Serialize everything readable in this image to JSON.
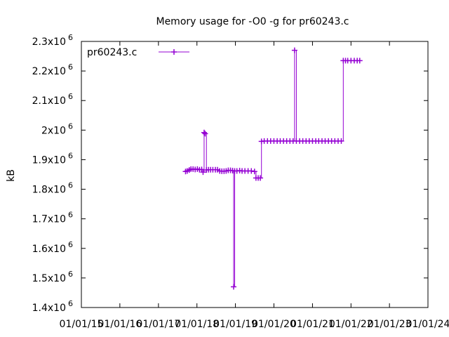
{
  "chart_data": {
    "type": "line",
    "title": "Memory usage for -O0 -g for pr60243.c",
    "xlabel": "",
    "ylabel": "kB",
    "ylim": [
      1400000,
      2300000
    ],
    "xlim": [
      "2015-01-01",
      "2024-01-01"
    ],
    "y_ticks": [
      {
        "value": 1400000,
        "base": "1.4x10",
        "exp": "6"
      },
      {
        "value": 1500000,
        "base": "1.5x10",
        "exp": "6"
      },
      {
        "value": 1600000,
        "base": "1.6x10",
        "exp": "6"
      },
      {
        "value": 1700000,
        "base": "1.7x10",
        "exp": "6"
      },
      {
        "value": 1800000,
        "base": "1.8x10",
        "exp": "6"
      },
      {
        "value": 1900000,
        "base": "1.9x10",
        "exp": "6"
      },
      {
        "value": 2000000,
        "base": "2x10",
        "exp": "6"
      },
      {
        "value": 2100000,
        "base": "2.1x10",
        "exp": "6"
      },
      {
        "value": 2200000,
        "base": "2.2x10",
        "exp": "6"
      },
      {
        "value": 2300000,
        "base": "2.3x10",
        "exp": "6"
      }
    ],
    "x_ticks": [
      {
        "value": "2015-01-01",
        "label": "01/01/15"
      },
      {
        "value": "2016-01-01",
        "label": "01/01/16"
      },
      {
        "value": "2017-01-01",
        "label": "01/01/17"
      },
      {
        "value": "2018-01-01",
        "label": "01/01/18"
      },
      {
        "value": "2019-01-01",
        "label": "01/01/19"
      },
      {
        "value": "2020-01-01",
        "label": "01/01/20"
      },
      {
        "value": "2021-01-01",
        "label": "01/01/21"
      },
      {
        "value": "2022-01-01",
        "label": "01/01/22"
      },
      {
        "value": "2023-01-01",
        "label": "01/01/23"
      },
      {
        "value": "2024-01-01",
        "label": "01/01/24"
      }
    ],
    "grid": false,
    "legend": {
      "position": "top-left",
      "entries": [
        "pr60243.c"
      ]
    },
    "series": [
      {
        "name": "pr60243.c",
        "color": "#9400d3",
        "marker": "plus",
        "points": [
          [
            "2017-09-15",
            1860000
          ],
          [
            "2017-10-01",
            1862000
          ],
          [
            "2017-10-20",
            1865000
          ],
          [
            "2017-11-05",
            1868000
          ],
          [
            "2017-11-25",
            1868000
          ],
          [
            "2017-12-15",
            1867000
          ],
          [
            "2018-01-05",
            1868000
          ],
          [
            "2018-01-25",
            1866000
          ],
          [
            "2018-02-15",
            1867000
          ],
          [
            "2018-02-28",
            1858000
          ],
          [
            "2018-03-10",
            1992000
          ],
          [
            "2018-03-20",
            1988000
          ],
          [
            "2018-04-01",
            1865000
          ],
          [
            "2018-04-20",
            1866000
          ],
          [
            "2018-05-10",
            1866000
          ],
          [
            "2018-06-01",
            1866000
          ],
          [
            "2018-06-25",
            1866000
          ],
          [
            "2018-07-15",
            1866000
          ],
          [
            "2018-08-05",
            1862000
          ],
          [
            "2018-08-25",
            1861000
          ],
          [
            "2018-09-15",
            1861000
          ],
          [
            "2018-10-05",
            1862000
          ],
          [
            "2018-10-25",
            1864000
          ],
          [
            "2018-11-15",
            1864000
          ],
          [
            "2018-12-05",
            1863000
          ],
          [
            "2018-12-15",
            1470000
          ],
          [
            "2018-12-25",
            1862000
          ],
          [
            "2019-01-15",
            1862000
          ],
          [
            "2019-02-10",
            1863000
          ],
          [
            "2019-03-05",
            1862000
          ],
          [
            "2019-04-01",
            1862000
          ],
          [
            "2019-05-01",
            1862000
          ],
          [
            "2019-06-01",
            1862000
          ],
          [
            "2019-07-01",
            1860000
          ],
          [
            "2019-07-15",
            1838000
          ],
          [
            "2019-08-05",
            1838000
          ],
          [
            "2019-08-25",
            1838000
          ],
          [
            "2019-09-05",
            1962000
          ],
          [
            "2019-10-01",
            1963000
          ],
          [
            "2019-11-01",
            1963000
          ],
          [
            "2019-12-01",
            1963000
          ],
          [
            "2020-01-01",
            1963000
          ],
          [
            "2020-02-01",
            1963000
          ],
          [
            "2020-03-01",
            1963000
          ],
          [
            "2020-04-01",
            1963000
          ],
          [
            "2020-05-01",
            1963000
          ],
          [
            "2020-06-01",
            1963000
          ],
          [
            "2020-07-01",
            1963000
          ],
          [
            "2020-07-15",
            2270000
          ],
          [
            "2020-08-01",
            1963000
          ],
          [
            "2020-09-01",
            1963000
          ],
          [
            "2020-10-01",
            1963000
          ],
          [
            "2020-11-01",
            1963000
          ],
          [
            "2020-12-01",
            1963000
          ],
          [
            "2021-01-01",
            1963000
          ],
          [
            "2021-02-01",
            1963000
          ],
          [
            "2021-03-01",
            1963000
          ],
          [
            "2021-04-01",
            1963000
          ],
          [
            "2021-05-01",
            1963000
          ],
          [
            "2021-06-01",
            1963000
          ],
          [
            "2021-07-01",
            1963000
          ],
          [
            "2021-08-01",
            1963000
          ],
          [
            "2021-09-01",
            1963000
          ],
          [
            "2021-10-01",
            1963000
          ],
          [
            "2021-10-20",
            2235000
          ],
          [
            "2021-11-10",
            2235000
          ],
          [
            "2021-12-01",
            2235000
          ],
          [
            "2022-01-01",
            2235000
          ],
          [
            "2022-02-01",
            2235000
          ],
          [
            "2022-03-01",
            2235000
          ],
          [
            "2022-03-25",
            2235000
          ]
        ]
      }
    ]
  }
}
